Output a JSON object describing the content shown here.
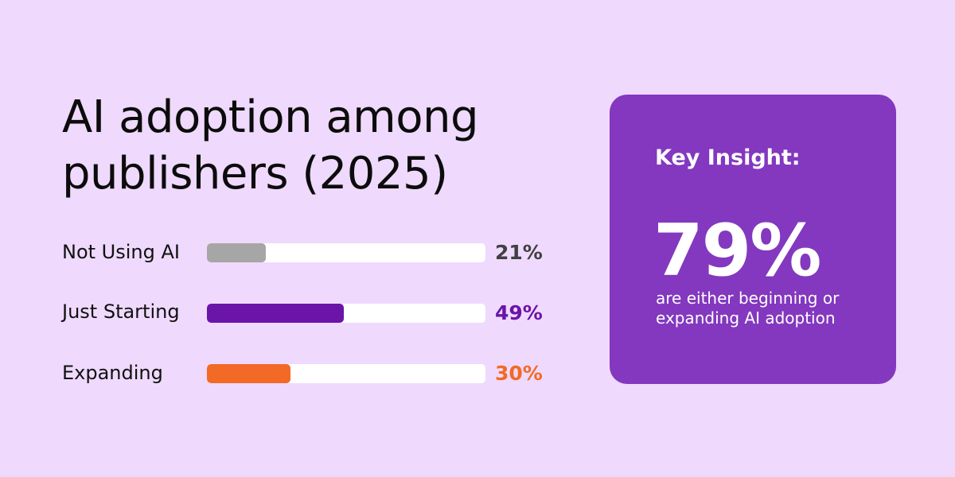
{
  "chart_data": {
    "type": "bar",
    "orientation": "horizontal",
    "title_lines": [
      "AI adoption among",
      "publishers (2025)"
    ],
    "categories": [
      "Not Using AI",
      "Just Starting",
      "Expanding"
    ],
    "values": [
      21,
      49,
      30
    ],
    "value_labels": [
      "21%",
      "49%",
      "30%"
    ],
    "colors": [
      "#a6a6a6",
      "#6a14a8",
      "#f26a25"
    ],
    "value_label_colors": [
      "#404040",
      "#6a14a8",
      "#f26a25"
    ],
    "xlim": [
      0,
      100
    ],
    "grid": false,
    "legend": "none"
  },
  "insight": {
    "heading": "Key Insight:",
    "stat": "79%",
    "text_lines": [
      "are either beginning or",
      "expanding AI adoption"
    ]
  }
}
